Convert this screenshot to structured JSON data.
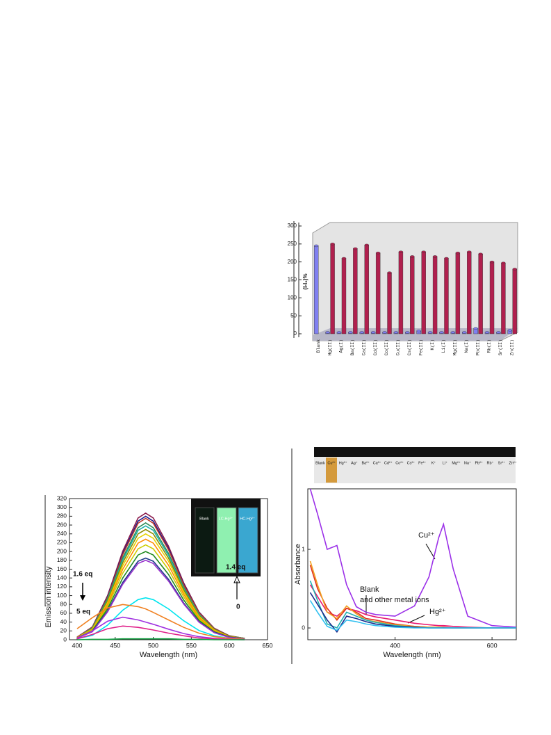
{
  "chart_data": [
    {
      "type": "bar",
      "y_label": "(I-I₀)%",
      "categories": [
        "Blank",
        "Hg(II)",
        "Ag(I)",
        "Ba(II)",
        "Ca(II)",
        "Cd(II)",
        "Co(II)",
        "Cu(II)",
        "Cs(II)",
        "Fe(II)",
        "K(I)",
        "Li(I)",
        "Mg(II)",
        "Na(I)",
        "Pb(II)",
        "Rb(I)",
        "Sr(II)",
        "Zn(II)"
      ],
      "series": [
        {
          "color": "#8080f0",
          "values": [
            245,
            4,
            4,
            4,
            4,
            4,
            4,
            4,
            4,
            8,
            4,
            4,
            4,
            4,
            15,
            4,
            4,
            10
          ]
        },
        {
          "color": "#b0204e",
          "values": [
            null,
            250,
            210,
            237,
            247,
            225,
            170,
            228,
            215,
            228,
            215,
            210,
            225,
            228,
            222,
            200,
            197,
            180
          ]
        }
      ],
      "ylim": [
        0,
        300
      ],
      "yticks": [
        0,
        50,
        100,
        150,
        200,
        250,
        300
      ]
    },
    {
      "type": "line",
      "x_label": "Wavelength (nm)",
      "y_label": "Emission intensity",
      "x": [
        400,
        420,
        440,
        460,
        480,
        490,
        500,
        520,
        540,
        560,
        580,
        600,
        620
      ],
      "series": [
        {
          "color": "#8b1a4a",
          "values": [
            6,
            29,
            100,
            201,
            276,
            287,
            276,
            212,
            129,
            63,
            26,
            9,
            3
          ]
        },
        {
          "color": "#1a1a8c",
          "values": [
            6,
            28,
            98,
            196,
            269,
            280,
            269,
            207,
            126,
            62,
            25,
            8,
            3
          ]
        },
        {
          "color": "#c0392b",
          "values": [
            6,
            28,
            96,
            193,
            264,
            275,
            264,
            204,
            124,
            61,
            25,
            8,
            3
          ]
        },
        {
          "color": "#2e8b57",
          "values": [
            5,
            27,
            93,
            186,
            254,
            265,
            254,
            196,
            119,
            58,
            24,
            8,
            3
          ]
        },
        {
          "color": "#20b2aa",
          "values": [
            5,
            26,
            90,
            181,
            248,
            258,
            248,
            191,
            116,
            57,
            23,
            8,
            3
          ]
        },
        {
          "color": "#8b8b00",
          "values": [
            5,
            25,
            88,
            175,
            240,
            250,
            240,
            185,
            113,
            55,
            23,
            8,
            3
          ]
        },
        {
          "color": "#e6d200",
          "values": [
            5,
            24,
            84,
            168,
            230,
            240,
            230,
            178,
            108,
            53,
            22,
            7,
            2
          ]
        },
        {
          "color": "#ff8c00",
          "values": [
            5,
            23,
            80,
            160,
            219,
            228,
            219,
            169,
            103,
            50,
            21,
            7,
            2
          ]
        },
        {
          "color": "#cccc00",
          "values": [
            4,
            22,
            75,
            151,
            206,
            215,
            206,
            159,
            97,
            47,
            19,
            6,
            2
          ]
        },
        {
          "color": "#228b22",
          "values": [
            4,
            20,
            70,
            140,
            192,
            200,
            192,
            148,
            90,
            44,
            18,
            6,
            2
          ]
        },
        {
          "color": "#1e3a8a",
          "values": [
            4,
            19,
            65,
            130,
            178,
            185,
            178,
            137,
            83,
            41,
            17,
            6,
            2
          ]
        },
        {
          "color": "#9932cc",
          "values": [
            4,
            18,
            63,
            126,
            173,
            180,
            173,
            133,
            81,
            40,
            16,
            5,
            2
          ]
        },
        {
          "color": "#00e5ee",
          "values": [
            2,
            10,
            33,
            67,
            91,
            95,
            91,
            70,
            43,
            21,
            9,
            3,
            1
          ]
        },
        {
          "color": "#f08020",
          "values": [
            25,
            50,
            72,
            80,
            75,
            70,
            62,
            45,
            28,
            15,
            7,
            3,
            1
          ]
        },
        {
          "color": "#a030e0",
          "values": [
            3,
            20,
            42,
            51,
            45,
            40,
            35,
            24,
            14,
            7,
            3,
            1,
            0
          ]
        },
        {
          "color": "#e0208a",
          "values": [
            2,
            12,
            25,
            31,
            28,
            25,
            22,
            15,
            9,
            4,
            2,
            1,
            0
          ]
        },
        {
          "color": "#10a040",
          "values": [
            0,
            1,
            1,
            2,
            2,
            2,
            2,
            2,
            1,
            1,
            0,
            0,
            0
          ]
        }
      ],
      "xlim": [
        390,
        650
      ],
      "xticks": [
        400,
        450,
        500,
        550,
        600,
        650
      ],
      "ylim": [
        0,
        320
      ],
      "yticks": [
        0,
        20,
        40,
        60,
        80,
        100,
        120,
        140,
        160,
        180,
        200,
        220,
        240,
        260,
        280,
        300,
        320
      ],
      "annotations": [
        "1.6 eq",
        "5 eq",
        "1.4 eq",
        "0"
      ],
      "inset_labels": [
        "Blank",
        "LC-Hg²⁺",
        "HC-Hg²⁺"
      ]
    },
    {
      "type": "line",
      "x_label": "Wavelength (nm)",
      "y_label": "Absorbance",
      "x": [
        225,
        240,
        260,
        280,
        300,
        320,
        340,
        360,
        400,
        440,
        470,
        490,
        500,
        520,
        550,
        600,
        650
      ],
      "series": [
        {
          "color": "#9b30e8",
          "values": [
            1.77,
            1.45,
            1.0,
            1.05,
            0.55,
            0.27,
            0.2,
            0.17,
            0.15,
            0.28,
            0.65,
            1.15,
            1.32,
            0.75,
            0.15,
            0.03,
            0.01
          ]
        },
        {
          "color": "#e81870",
          "values": [
            0.55,
            0.4,
            0.2,
            0.15,
            0.25,
            0.22,
            0.17,
            0.14,
            0.1,
            0.06,
            0.04,
            0.03,
            0.03,
            0.02,
            0.01,
            0,
            0
          ]
        },
        {
          "color": "#e03020",
          "values": [
            0.8,
            0.5,
            0.25,
            0.1,
            0.25,
            0.2,
            0.12,
            0.1,
            0.05,
            0.02,
            0.01,
            0.01,
            0.01,
            0,
            0,
            0,
            0
          ]
        },
        {
          "color": "#f0a020",
          "values": [
            0.85,
            0.55,
            0.2,
            0.12,
            0.28,
            0.18,
            0.1,
            0.08,
            0.04,
            0.02,
            0.01,
            0.01,
            0,
            0,
            0,
            0,
            0
          ]
        },
        {
          "color": "#20b0b0",
          "values": [
            0.6,
            0.35,
            0.05,
            0.0,
            0.2,
            0.15,
            0.1,
            0.07,
            0.03,
            0.01,
            0,
            0,
            0,
            0,
            0,
            0,
            0
          ]
        },
        {
          "color": "#1a2a8c",
          "values": [
            0.45,
            0.3,
            0.1,
            -0.05,
            0.15,
            0.12,
            0.08,
            0.05,
            0.02,
            0.01,
            0,
            0,
            0,
            0,
            0,
            0,
            0
          ]
        },
        {
          "color": "#30c0f0",
          "values": [
            0.35,
            0.2,
            0.02,
            -0.03,
            0.1,
            0.08,
            0.05,
            0.03,
            0.01,
            0,
            0,
            0,
            0,
            0,
            0,
            0,
            0
          ]
        }
      ],
      "xlim": [
        220,
        650
      ],
      "xticks": [
        400,
        600
      ],
      "ylim": [
        -0.15,
        1.77
      ],
      "yticks": [
        0,
        1
      ],
      "annotations": [
        "Cu²⁺",
        "Blank",
        "and other metal ions",
        "Hg²⁺"
      ],
      "photo_labels": [
        "Blank",
        "Cu²⁺",
        "Hg²⁺",
        "Ag⁺",
        "Ba²⁺",
        "Ca²⁺",
        "Cd²⁺",
        "Co²⁺",
        "Cs²⁺",
        "Fe²⁺",
        "K⁺",
        "Li⁺",
        "Mg²⁺",
        "Na⁺",
        "Pb²⁺",
        "Rb⁺",
        "Sr²⁺",
        "Zn²⁺"
      ]
    }
  ]
}
